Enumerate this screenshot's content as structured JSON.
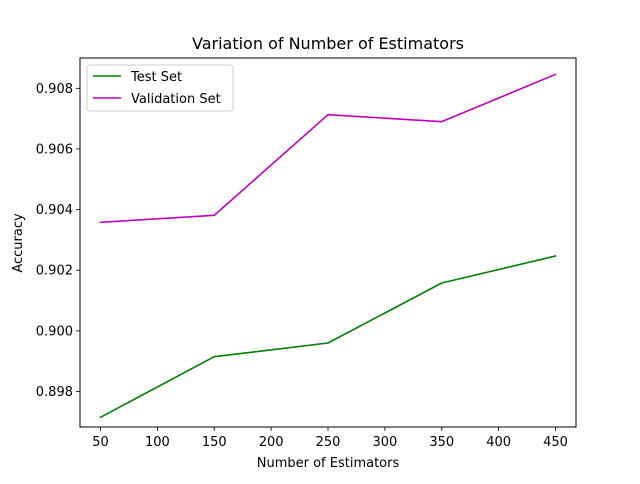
{
  "chart_data": {
    "type": "line",
    "title": "Variation of Number of Estimators",
    "xlabel": "Number of Estimators",
    "ylabel": "Accuracy",
    "x": [
      50,
      150,
      250,
      350,
      450
    ],
    "xlim": [
      32,
      468
    ],
    "ylim": [
      0.89683,
      0.909
    ],
    "xticks": [
      50,
      100,
      150,
      200,
      250,
      300,
      350,
      400,
      450
    ],
    "xtick_labels": [
      "50",
      "100",
      "150",
      "200",
      "250",
      "300",
      "350",
      "400",
      "450"
    ],
    "yticks": [
      0.898,
      0.9,
      0.902,
      0.904,
      0.906,
      0.908
    ],
    "ytick_labels": [
      "0.898",
      "0.900",
      "0.902",
      "0.904",
      "0.906",
      "0.908"
    ],
    "grid": false,
    "legend_position": "top-left",
    "series": [
      {
        "name": "Test Set",
        "color": "#008000",
        "values": [
          0.89715,
          0.89915,
          0.8996,
          0.90158,
          0.90247
        ]
      },
      {
        "name": "Validation Set",
        "color": "#bf00bf",
        "values": [
          0.90358,
          0.90381,
          0.90713,
          0.9069,
          0.90846
        ]
      }
    ]
  }
}
